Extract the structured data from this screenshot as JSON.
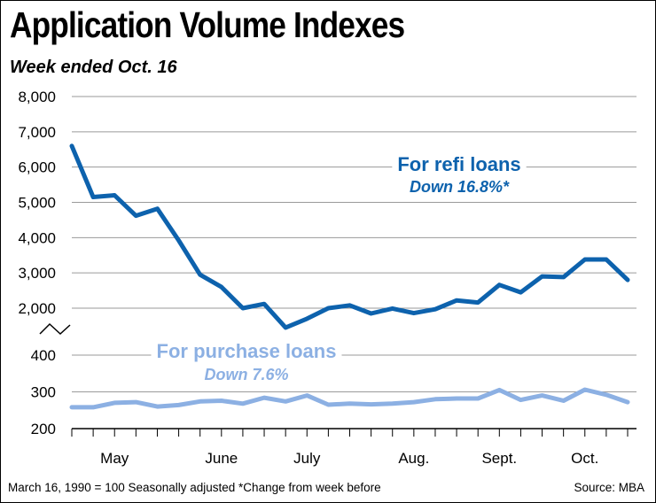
{
  "header": {
    "title": "Application Volume Indexes",
    "subtitle": "Week ended Oct. 16"
  },
  "chart_data": {
    "type": "line",
    "title": "Application Volume Indexes",
    "subtitle": "Week ended Oct. 16",
    "y_axis": {
      "broken": true,
      "upper_ticks": [
        "2,000",
        "3,000",
        "4,000",
        "5,000",
        "6,000",
        "7,000",
        "8,000"
      ],
      "upper_range": [
        2000,
        8000
      ],
      "lower_ticks": [
        "200",
        "300",
        "400"
      ],
      "lower_range": [
        200,
        400
      ]
    },
    "x_labels": [
      {
        "label": "May",
        "week": 2
      },
      {
        "label": "June",
        "week": 7
      },
      {
        "label": "July",
        "week": 11
      },
      {
        "label": "Aug.",
        "week": 16
      },
      {
        "label": "Sept.",
        "week": 20
      },
      {
        "label": "Oct.",
        "week": 24
      }
    ],
    "grid": true,
    "series": [
      {
        "name": "For refi loans",
        "annotation": "Down 16.8%*",
        "color": "#0d62ad",
        "values": [
          6600,
          5150,
          5200,
          4620,
          4820,
          3920,
          2950,
          2600,
          2000,
          2120,
          1450,
          1700,
          2000,
          2080,
          1850,
          1990,
          1860,
          1970,
          2220,
          2160,
          2660,
          2450,
          2900,
          2880,
          3380,
          3380,
          2800
        ]
      },
      {
        "name": "For purchase loans",
        "annotation": "Down 7.6%",
        "color": "#8cb0e3",
        "values": [
          258,
          258,
          270,
          272,
          260,
          264,
          274,
          276,
          268,
          284,
          274,
          290,
          265,
          268,
          266,
          268,
          272,
          280,
          282,
          282,
          305,
          278,
          290,
          276,
          306,
          292,
          272
        ]
      }
    ]
  },
  "footer": {
    "note": "March 16, 1990 = 100   Seasonally adjusted   *Change from week before",
    "source": "Source: MBA"
  }
}
